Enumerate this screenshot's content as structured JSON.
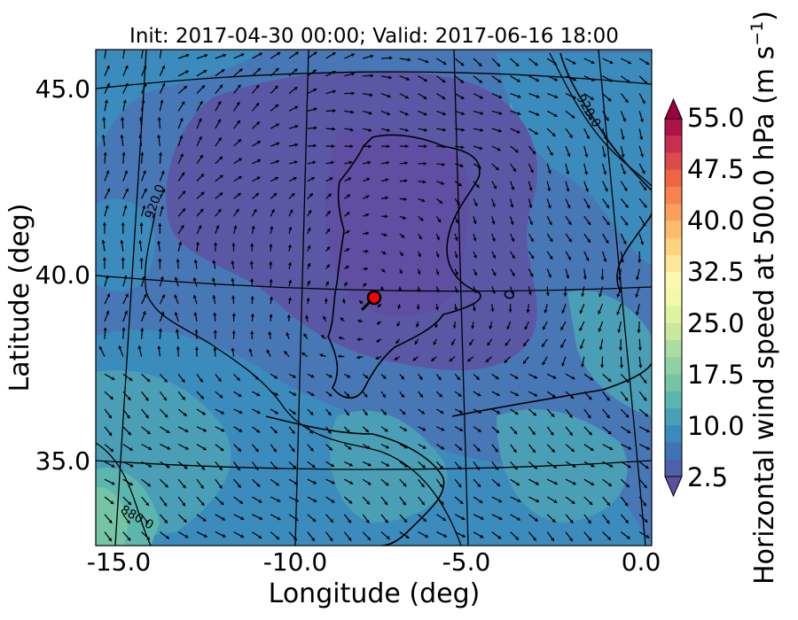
{
  "title": "Init: 2017-04-30 00:00; Valid: 2017-06-16 18:00",
  "xlabel": "Longitude (deg)",
  "ylabel": "Latitude (deg)",
  "x_ticks": [
    "-15.0",
    "-10.0",
    "-5.0",
    "0.0"
  ],
  "y_ticks": [
    "45.0",
    "40.0",
    "35.0"
  ],
  "colorbar": {
    "label": "Horizontal wind speed at 500.0 hPa (m s",
    "label_exponent": "−1",
    "label_close": ")",
    "ticks": [
      "55.0",
      "47.5",
      "40.0",
      "32.5",
      "25.0",
      "17.5",
      "10.0",
      "2.5"
    ],
    "colors": [
      "#5e4fa2",
      "#4f61aa",
      "#4073b3",
      "#3b8abd",
      "#4a9fb6",
      "#5db6ae",
      "#74c4a5",
      "#90d1a4",
      "#abdca2",
      "#c6e89f",
      "#def2a0",
      "#f1f9a9",
      "#fbf8b0",
      "#fee79a",
      "#fdd380",
      "#fdbb6c",
      "#fba05b",
      "#f6834d",
      "#ee6544",
      "#dd4a4c",
      "#c72e4f",
      "#ae1347",
      "#9e0142"
    ]
  },
  "contour_labels": [
    "920.0",
    "920.0",
    "880.0"
  ],
  "marker": {
    "lon": -7.6,
    "lat": 39.3,
    "color": "#ff0000"
  }
}
